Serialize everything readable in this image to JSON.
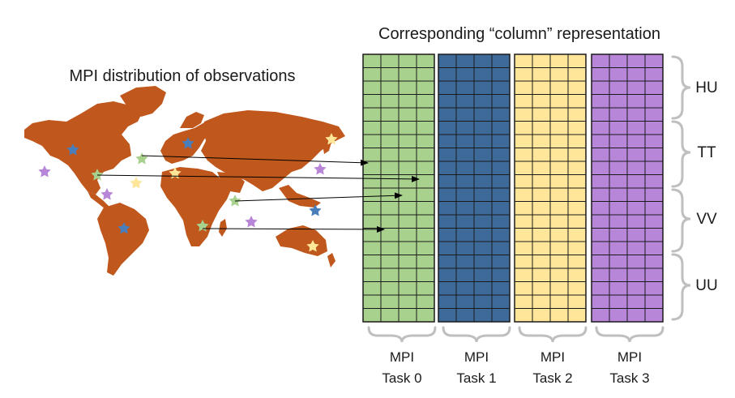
{
  "titles": {
    "map": "MPI distribution of observations",
    "columns": "Corresponding “column” representation"
  },
  "variables": [
    "HU",
    "TT",
    "VV",
    "UU"
  ],
  "tasks": [
    {
      "line1": "MPI",
      "line2": "Task 0",
      "color": "#a9d18e"
    },
    {
      "line1": "MPI",
      "line2": "Task 1",
      "color": "#3d6a99"
    },
    {
      "line1": "MPI",
      "line2": "Task 2",
      "color": "#ffe699"
    },
    {
      "line1": "MPI",
      "line2": "Task 3",
      "color": "#b886d9"
    }
  ],
  "colors": {
    "land": "#c0571c",
    "grid": "#1a1a1a",
    "brace": "#bfbfbf",
    "arrow": "#000000",
    "star_green": "#a9d18e",
    "star_blue": "#4a7ebb",
    "star_yellow": "#ffe699",
    "star_purple": "#b886d9"
  }
}
